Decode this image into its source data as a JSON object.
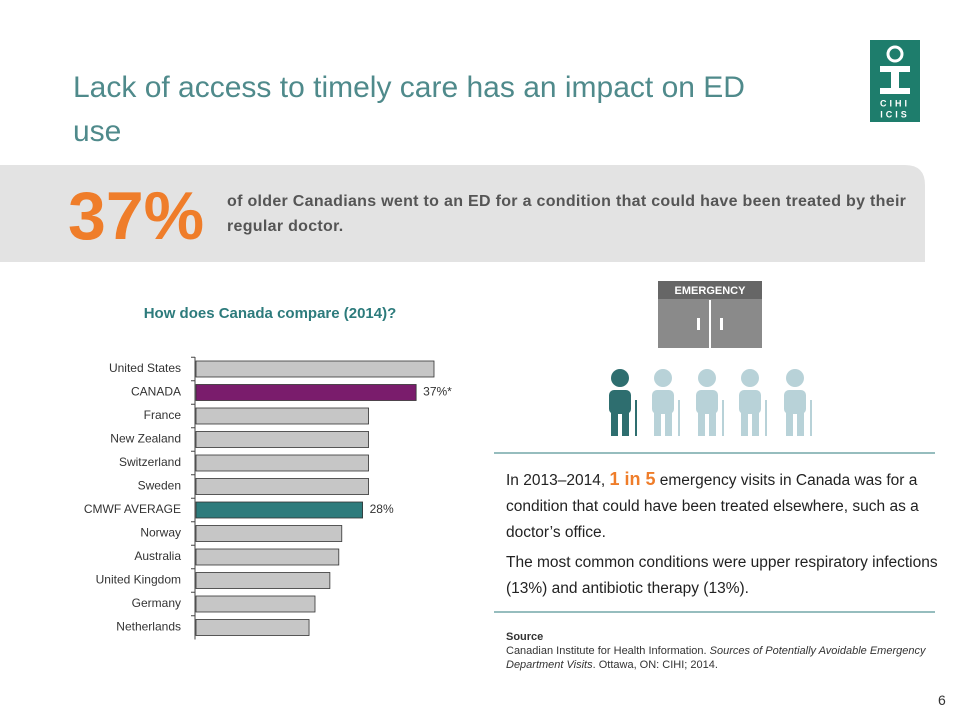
{
  "title": "Lack of access to timely care has an impact on ED use",
  "logo": {
    "line1": "CIHI",
    "line2": "ICIS"
  },
  "highlight": {
    "stat": "37%",
    "text": "of older Canadians went to an ED for a condition that could have been treated by their regular doctor."
  },
  "chart_data": {
    "type": "bar",
    "orientation": "horizontal",
    "title": "How does Canada compare (2014)?",
    "categories": [
      "United States",
      "CANADA",
      "France",
      "New Zealand",
      "Switzerland",
      "Sweden",
      "CMWF AVERAGE",
      "Norway",
      "Australia",
      "United Kingdom",
      "Germany",
      "Netherlands"
    ],
    "values": [
      40,
      37,
      29,
      29,
      29,
      29,
      28,
      24.5,
      24,
      22.5,
      20,
      19
    ],
    "value_labels": [
      null,
      "37%*",
      null,
      null,
      null,
      null,
      "28%",
      null,
      null,
      null,
      null,
      null
    ],
    "colors": [
      "#c6c6c6",
      "#7a1c6c",
      "#c6c6c6",
      "#c6c6c6",
      "#c6c6c6",
      "#c6c6c6",
      "#2d7b7c",
      "#c6c6c6",
      "#c6c6c6",
      "#c6c6c6",
      "#c6c6c6",
      "#c6c6c6"
    ]
  },
  "emergency_sign": "EMERGENCY",
  "info": {
    "p1_before": "In 2013–2014, ",
    "p1_highlight": "1 in 5",
    "p1_after": " emergency visits in Canada was for a condition that could have been treated elsewhere, such as a doctor’s office.",
    "p2": "The most common conditions were upper respiratory infections (13%) and antibiotic therapy (13%)."
  },
  "source": {
    "heading": "Source",
    "before": "Canadian Institute for Health Information. ",
    "title": "Sources of Potentially Avoidable Emergency Department Visits",
    "after": ". Ottawa, ON: CIHI; 2014."
  },
  "page_number": "6"
}
